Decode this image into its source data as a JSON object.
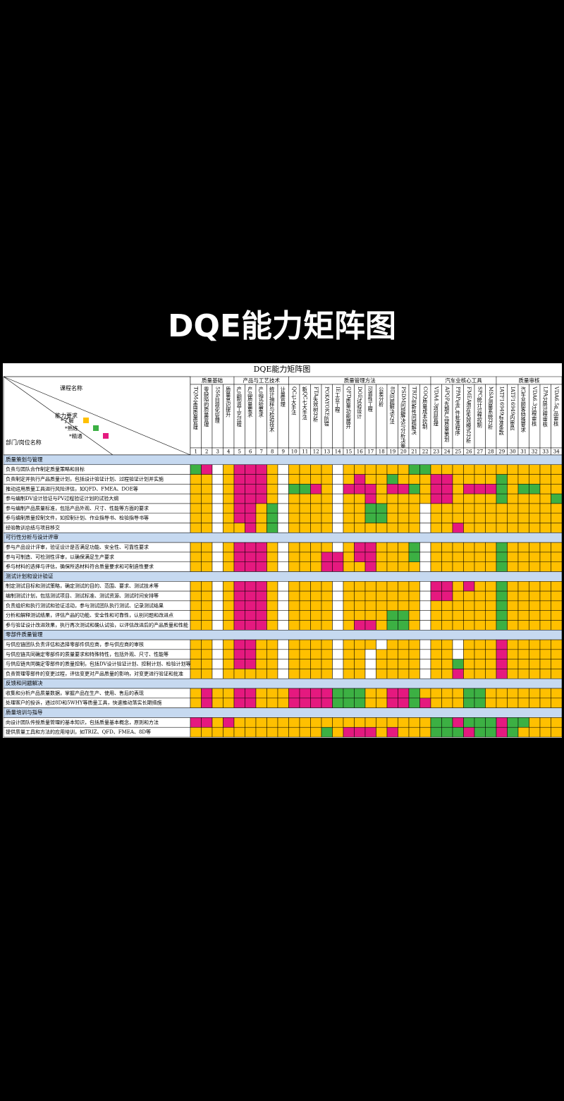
{
  "page_title": "DQE能力矩阵图",
  "table": {
    "title": "DQE能力矩阵图",
    "course_label": "课程名称",
    "requirement_label": "能力要求",
    "role_label": "部门/岗位名称",
    "levels": [
      {
        "label": "*了解",
        "color": "#ffc000"
      },
      {
        "label": "*熟练",
        "color": "#3cb043"
      },
      {
        "label": "*精通",
        "color": "#e5197f"
      }
    ],
    "groups": [
      {
        "name": "质量基础",
        "span": 4
      },
      {
        "name": "产品与工艺技术",
        "span": 5
      },
      {
        "name": "质量管理方法",
        "span": 13
      },
      {
        "name": "汽车业核心工具",
        "span": 6
      },
      {
        "name": "质量审核",
        "span": 6
      }
    ],
    "courses": [
      {
        "no": 1,
        "name": "TQM全面质量管理"
      },
      {
        "no": 2,
        "name": "零缺陷的质量管理"
      },
      {
        "no": 3,
        "name": "5S&目视化管理"
      },
      {
        "no": 4,
        "name": "质量意识提升"
      },
      {
        "no": 5,
        "name": "产品制造工艺过程"
      },
      {
        "no": 6,
        "name": "产品质量要求"
      },
      {
        "no": 7,
        "name": "产品试验要求"
      },
      {
        "no": 8,
        "name": "统计抽样与检验技术"
      },
      {
        "no": 9,
        "name": "计量管理"
      },
      {
        "no": 10,
        "name": "QC七大手法"
      },
      {
        "no": 11,
        "name": "新QC七大手法"
      },
      {
        "no": 12,
        "name": "FTA失效树分析"
      },
      {
        "no": 13,
        "name": "POKAYOKE防错"
      },
      {
        "no": 14,
        "name": "IE工业工程"
      },
      {
        "no": 15,
        "name": "QFD质量功能展开"
      },
      {
        "no": 16,
        "name": "DOE试验设计"
      },
      {
        "no": 17,
        "name": "可靠性工程"
      },
      {
        "no": 18,
        "name": "公差分析"
      },
      {
        "no": 19,
        "name": "8D问题解决方法"
      },
      {
        "no": 20,
        "name": "PSDM问题解决与分析决策"
      },
      {
        "no": 21,
        "name": "TRIZ创新性问题解决"
      },
      {
        "no": 22,
        "name": "COQ质量成本控制"
      },
      {
        "no": 23,
        "name": "VDA4.3项目管理"
      },
      {
        "no": 24,
        "name": "APQP先期产品质量策划"
      },
      {
        "no": 25,
        "name": "PPAP生产件批准程序"
      },
      {
        "no": 26,
        "name": "FMEA潜在失效模式分析"
      },
      {
        "no": 27,
        "name": "SPC统计过程控制"
      },
      {
        "no": 28,
        "name": "MSA测量系统分析"
      },
      {
        "no": 29,
        "name": "IATF16949标准条款"
      },
      {
        "no": 30,
        "name": "IATF16949内审员"
      },
      {
        "no": 31,
        "name": "汽车业顾客特殊要求"
      },
      {
        "no": 32,
        "name": "VDA6.3过程审核"
      },
      {
        "no": 33,
        "name": "LPA分层过程审核"
      },
      {
        "no": 34,
        "name": "VDA6.5产品审核"
      }
    ],
    "sections": [
      {
        "name": "质量策划与管理",
        "rows": [
          {
            "name": "负责与团队合作制定质量策略和目标",
            "levels": [
              2,
              3,
              0,
              1,
              3,
              3,
              3,
              1,
              0,
              1,
              1,
              1,
              1,
              0,
              1,
              1,
              1,
              1,
              1,
              1,
              2,
              2,
              1,
              1,
              1,
              1,
              1,
              1,
              1,
              1,
              1,
              1,
              1,
              1
            ]
          },
          {
            "name": "负责制定并执行产品质量计划，包括设计验证计划、过程验证计划并实施",
            "levels": [
              1,
              1,
              0,
              1,
              3,
              3,
              3,
              1,
              0,
              1,
              1,
              1,
              1,
              0,
              1,
              3,
              1,
              1,
              2,
              1,
              1,
              1,
              3,
              3,
              1,
              1,
              1,
              1,
              2,
              1,
              1,
              1,
              1,
              1
            ]
          },
          {
            "name": "推动运用质量工具进行风险评估，如QFD、FMEA、DOE等",
            "levels": [
              1,
              1,
              0,
              1,
              3,
              3,
              3,
              1,
              0,
              2,
              2,
              3,
              1,
              0,
              3,
              3,
              3,
              1,
              3,
              3,
              2,
              1,
              3,
              3,
              1,
              3,
              3,
              3,
              2,
              1,
              2,
              2,
              1,
              1
            ]
          },
          {
            "name": "参与编制DV设计验证与PV过程验证计划的试验大纲",
            "levels": [
              1,
              1,
              0,
              1,
              3,
              3,
              3,
              1,
              0,
              1,
              1,
              1,
              1,
              0,
              1,
              1,
              3,
              1,
              1,
              1,
              1,
              1,
              3,
              3,
              1,
              1,
              1,
              1,
              2,
              1,
              1,
              1,
              1,
              2
            ]
          },
          {
            "name": "参与编制产品质量标准，包括产品外观、尺寸、性能等方面的要求",
            "levels": [
              1,
              1,
              0,
              1,
              3,
              3,
              1,
              2,
              0,
              1,
              1,
              1,
              1,
              0,
              1,
              1,
              2,
              2,
              1,
              1,
              1,
              0,
              1,
              1,
              1,
              1,
              1,
              1,
              1,
              1,
              1,
              1,
              1,
              1
            ]
          },
          {
            "name": "参与编制质量控制文件，如控制计划、作业指导书、检验指导书等",
            "levels": [
              1,
              1,
              0,
              1,
              3,
              3,
              1,
              2,
              0,
              1,
              1,
              1,
              1,
              0,
              1,
              1,
              2,
              2,
              1,
              1,
              1,
              0,
              1,
              1,
              1,
              1,
              1,
              1,
              1,
              1,
              1,
              1,
              1,
              1
            ]
          },
          {
            "name": "经验教训总结与项目移交",
            "levels": [
              1,
              1,
              0,
              1,
              1,
              3,
              1,
              2,
              0,
              1,
              1,
              1,
              1,
              0,
              1,
              1,
              1,
              1,
              1,
              1,
              1,
              0,
              1,
              1,
              3,
              1,
              1,
              1,
              1,
              1,
              1,
              1,
              1,
              1
            ]
          }
        ]
      },
      {
        "name": "可行性分析与设计评审",
        "rows": [
          {
            "name": "参与产品设计评审，验证设计是否满足功能、安全性、可靠性要求",
            "levels": [
              1,
              1,
              0,
              1,
              3,
              3,
              3,
              1,
              0,
              1,
              1,
              1,
              1,
              0,
              1,
              3,
              3,
              1,
              1,
              1,
              2,
              0,
              1,
              1,
              1,
              1,
              1,
              1,
              2,
              1,
              1,
              1,
              1,
              1
            ]
          },
          {
            "name": "参与可制造、可检测性评审，以确保满足生产要求",
            "levels": [
              1,
              1,
              0,
              1,
              3,
              3,
              3,
              1,
              0,
              1,
              1,
              1,
              3,
              3,
              1,
              3,
              3,
              1,
              1,
              1,
              2,
              0,
              1,
              1,
              1,
              1,
              1,
              1,
              2,
              1,
              1,
              1,
              1,
              1
            ]
          },
          {
            "name": "参与材料的选择与评估，确保所选材料符合质量要求和可制造性要求",
            "levels": [
              1,
              1,
              0,
              1,
              3,
              3,
              3,
              1,
              0,
              1,
              1,
              1,
              3,
              3,
              1,
              1,
              3,
              1,
              1,
              1,
              1,
              0,
              1,
              1,
              1,
              1,
              1,
              1,
              2,
              1,
              1,
              1,
              1,
              1
            ]
          }
        ]
      },
      {
        "name": "测试计划和设计验证",
        "rows": [
          {
            "name": "制定测试目标和测试策略，确定测试的目的、范围、要求、测试技术等",
            "levels": [
              1,
              1,
              0,
              1,
              3,
              3,
              3,
              1,
              0,
              1,
              1,
              1,
              1,
              0,
              1,
              1,
              1,
              1,
              1,
              1,
              1,
              0,
              3,
              3,
              1,
              3,
              1,
              1,
              2,
              1,
              1,
              1,
              1,
              1
            ]
          },
          {
            "name": "编制测试计划，包括测试项目、测试标准、测试资源、测试时间安排等",
            "levels": [
              1,
              1,
              0,
              1,
              3,
              3,
              3,
              1,
              0,
              1,
              1,
              1,
              1,
              0,
              1,
              1,
              1,
              1,
              1,
              1,
              1,
              0,
              3,
              3,
              1,
              1,
              1,
              1,
              2,
              1,
              1,
              1,
              1,
              1
            ]
          },
          {
            "name": "负责组织和执行测试和验证活动，参与测试团队执行测试、记录测试结果",
            "levels": [
              1,
              1,
              0,
              1,
              3,
              3,
              3,
              1,
              0,
              1,
              1,
              1,
              1,
              0,
              1,
              1,
              1,
              1,
              1,
              1,
              1,
              0,
              1,
              1,
              1,
              1,
              1,
              1,
              2,
              1,
              1,
              1,
              1,
              1
            ]
          },
          {
            "name": "分析和解释测试结果，评估产品的功能、安全性和可靠性，认别问题和改进点",
            "levels": [
              1,
              1,
              0,
              1,
              3,
              3,
              3,
              1,
              0,
              1,
              1,
              1,
              1,
              0,
              1,
              1,
              1,
              1,
              2,
              2,
              1,
              0,
              1,
              1,
              1,
              1,
              1,
              1,
              2,
              1,
              1,
              1,
              1,
              1
            ]
          },
          {
            "name": "参与验证设计改进效果，执行再次测试和确认试验，以评估改进后的产品质量和性能",
            "levels": [
              1,
              1,
              0,
              1,
              3,
              3,
              3,
              1,
              0,
              1,
              1,
              1,
              1,
              0,
              1,
              3,
              3,
              1,
              2,
              2,
              1,
              0,
              1,
              1,
              1,
              1,
              1,
              1,
              2,
              1,
              1,
              1,
              1,
              1
            ]
          }
        ]
      },
      {
        "name": "零部件质量管理",
        "rows": [
          {
            "name": "与供应链团队负责评估和选择零部件供应商，参与供应商的审核",
            "levels": [
              1,
              1,
              0,
              1,
              3,
              3,
              1,
              1,
              0,
              1,
              1,
              1,
              1,
              0,
              1,
              1,
              1,
              0,
              1,
              1,
              1,
              0,
              1,
              1,
              0,
              1,
              1,
              1,
              3,
              1,
              1,
              1,
              1,
              1
            ]
          },
          {
            "name": "与供应链共同确定零部件的质量要求和特殊特性，包括外观、尺寸、性能等",
            "levels": [
              1,
              1,
              0,
              1,
              3,
              3,
              1,
              1,
              0,
              1,
              1,
              1,
              1,
              0,
              1,
              1,
              0,
              1,
              1,
              1,
              1,
              0,
              1,
              1,
              0,
              1,
              1,
              1,
              3,
              1,
              1,
              1,
              1,
              1
            ]
          },
          {
            "name": "与供应链共同确定零部件的质量控制，包括DV设计验证计划、控制计划、检验计划等",
            "levels": [
              1,
              1,
              0,
              1,
              3,
              3,
              1,
              1,
              0,
              1,
              1,
              1,
              1,
              0,
              1,
              1,
              0,
              1,
              1,
              1,
              1,
              0,
              1,
              1,
              2,
              1,
              1,
              1,
              3,
              1,
              1,
              1,
              1,
              1
            ]
          },
          {
            "name": "负责管理零部件的变更过程，评估变更对产品质量的影响，对变更进行验证和批准",
            "levels": [
              1,
              1,
              0,
              1,
              1,
              1,
              1,
              1,
              0,
              1,
              1,
              1,
              1,
              0,
              1,
              1,
              0,
              1,
              1,
              1,
              1,
              0,
              1,
              1,
              3,
              1,
              1,
              1,
              3,
              1,
              1,
              1,
              1,
              1
            ]
          }
        ]
      },
      {
        "name": "反馈和问题解决",
        "rows": [
          {
            "name": "收集和分析产品质量数据，掌握产品在生产、使用、售后的表现",
            "levels": [
              1,
              3,
              1,
              1,
              3,
              3,
              1,
              1,
              1,
              3,
              3,
              3,
              3,
              2,
              2,
              2,
              1,
              1,
              3,
              3,
              2,
              1,
              1,
              1,
              1,
              2,
              2,
              1,
              1,
              1,
              1,
              1,
              1,
              1
            ]
          },
          {
            "name": "处理客户的投诉，通过8D和5WHY等质量工具，快速推动落实长期措施",
            "levels": [
              1,
              3,
              1,
              1,
              3,
              3,
              1,
              1,
              1,
              3,
              3,
              3,
              3,
              2,
              2,
              2,
              1,
              1,
              3,
              3,
              2,
              3,
              1,
              1,
              1,
              2,
              2,
              1,
              1,
              1,
              1,
              1,
              1,
              1
            ]
          }
        ]
      },
      {
        "name": "质量培训与指导",
        "rows": [
          {
            "name": "向设计团队传授质量管理的基本知识，包括质量基本概念，原则和方法",
            "levels": [
              3,
              3,
              1,
              3,
              1,
              1,
              1,
              1,
              1,
              1,
              1,
              1,
              1,
              1,
              1,
              1,
              1,
              1,
              1,
              1,
              1,
              1,
              2,
              2,
              3,
              2,
              2,
              2,
              3,
              2,
              2,
              1,
              1,
              1
            ]
          },
          {
            "name": "提供质量工具和方法的应用培训，如TRIZ、QFD、FMEA、8D等",
            "levels": [
              1,
              1,
              1,
              1,
              1,
              1,
              1,
              1,
              1,
              1,
              1,
              1,
              2,
              1,
              3,
              3,
              3,
              1,
              3,
              1,
              1,
              1,
              2,
              2,
              2,
              3,
              2,
              2,
              3,
              2,
              1,
              1,
              1,
              1
            ]
          }
        ]
      }
    ]
  }
}
